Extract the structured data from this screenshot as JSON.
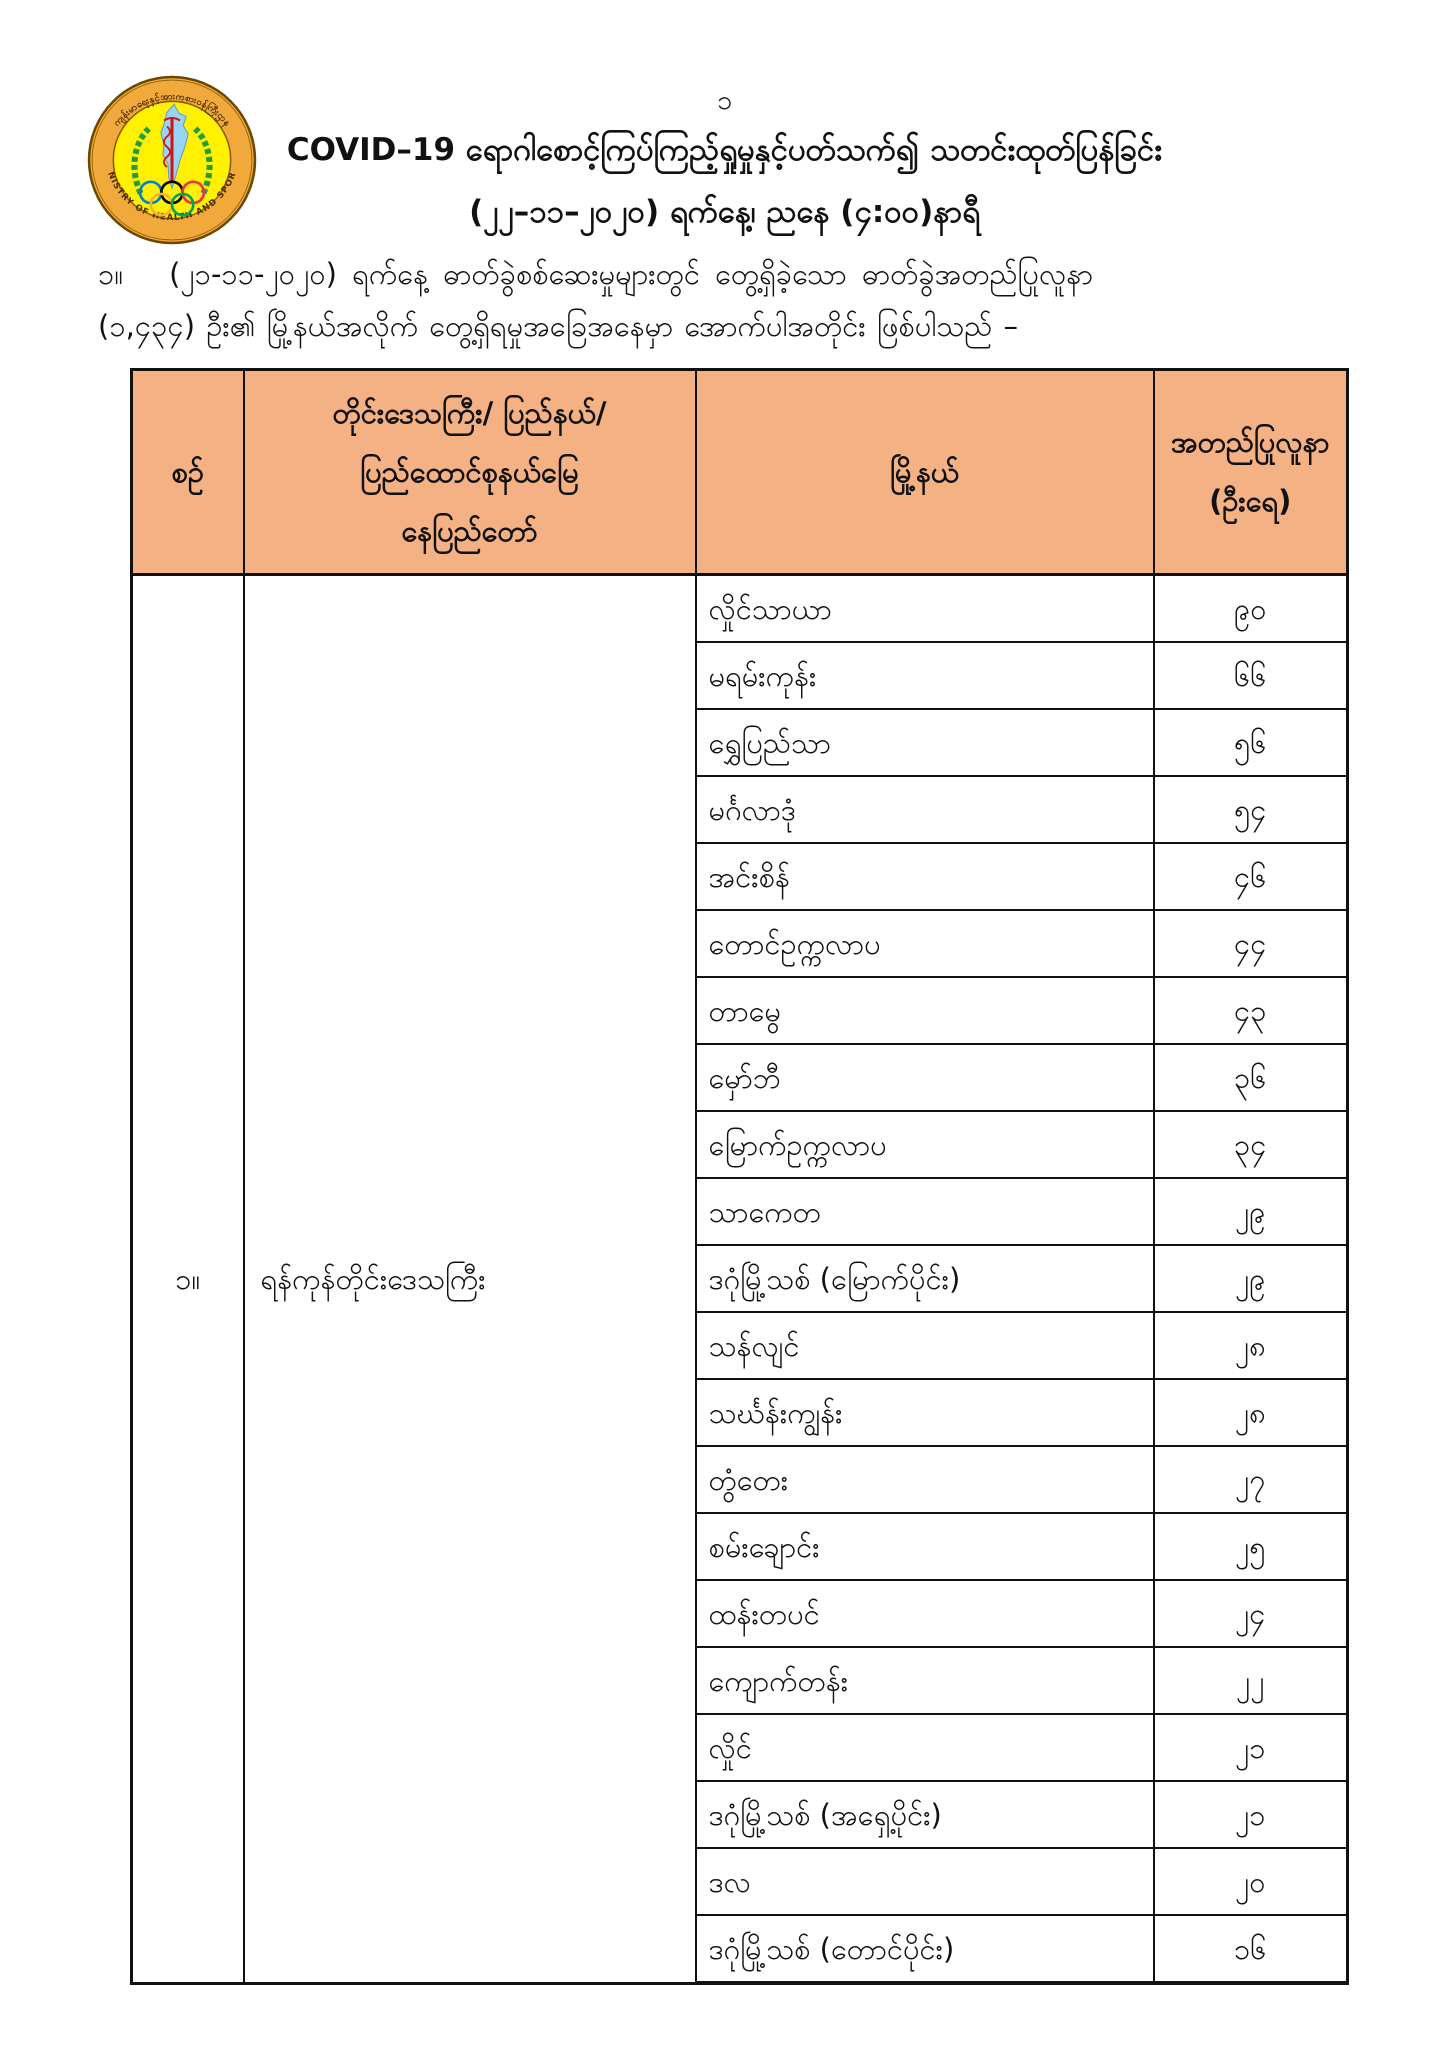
{
  "page": {
    "page_number": "၁",
    "title_line1": "COVID–19 ရောဂါစောင့်ကြပ်ကြည့်ရှုမှုနှင့်ပတ်သက်၍ သတင်းထုတ်ပြန်ခြင်း",
    "title_line2": "(၂၂–၁၁–၂၀၂၀) ရက်နေ့၊ ညနေ (၄:၀၀)နာရီ",
    "intro_item_number": "၁။",
    "intro_line1": "(၂၁-၁၁-၂၀၂၀) ရက်နေ့ ဓာတ်ခွဲစစ်ဆေးမှုများတွင် တွေ့ရှိခဲ့သော ဓာတ်ခွဲအတည်ပြုလူနာ",
    "intro_line2": "(၁,၄၃၄) ဦး၏ မြို့နယ်အလိုက် တွေ့ရှိရမှုအခြေအနေမှာ အောက်ပါအတိုင်း ဖြစ်ပါသည် –"
  },
  "logo": {
    "ring_text_top": "ကျန်းမာရေးနှင့်အားကစားဝန်ကြီးဌာန",
    "ring_text_bottom": "MINISTRY OF HEALTH AND SPORTS",
    "colors": {
      "outer_ring": "#F2A93B",
      "inner_disc": "#FFF100",
      "ring_text": "#4a2e00",
      "laurel_green": "#1E9E3E",
      "map_blue": "#9AD4F5",
      "rod_red": "#D11414"
    }
  },
  "table": {
    "header_bg": "#F4B183",
    "headers": {
      "serial": "စဉ်",
      "region": "တိုင်းဒေသကြီး/ ပြည်နယ်/\nပြည်ထောင်စုနယ်မြေ\nနေပြည်တော်",
      "township": "မြို့နယ်",
      "confirmed": "အတည်ပြုလူနာ\n(ဦးရေ)"
    },
    "serial": "၁။",
    "region": "ရန်ကုန်တိုင်းဒေသကြီး",
    "rows": [
      {
        "township": "လှိုင်သာယာ",
        "count": "၉၀"
      },
      {
        "township": "မရမ်းကုန်း",
        "count": "၆၆"
      },
      {
        "township": "ရွှေပြည်သာ",
        "count": "၅၆"
      },
      {
        "township": "မင်္ဂလာဒုံ",
        "count": "၅၄"
      },
      {
        "township": "အင်းစိန်",
        "count": "၄၆"
      },
      {
        "township": "တောင်ဥက္ကလာပ",
        "count": "၄၄"
      },
      {
        "township": "တာမွေ",
        "count": "၄၃"
      },
      {
        "township": "မှော်ဘီ",
        "count": "၃၆"
      },
      {
        "township": "မြောက်ဥက္ကလာပ",
        "count": "၃၄"
      },
      {
        "township": "သာကေတ",
        "count": "၂၉"
      },
      {
        "township": "ဒဂုံမြို့သစ် (မြောက်ပိုင်း)",
        "count": "၂၉"
      },
      {
        "township": "သန်လျင်",
        "count": "၂၈"
      },
      {
        "township": "သင်္ဃန်းကျွန်း",
        "count": "၂၈"
      },
      {
        "township": "တွံတေး",
        "count": "၂၇"
      },
      {
        "township": "စမ်းချောင်း",
        "count": "၂၅"
      },
      {
        "township": "ထန်းတပင်",
        "count": "၂၄"
      },
      {
        "township": "ကျောက်တန်း",
        "count": "၂၂"
      },
      {
        "township": "လှိုင်",
        "count": "၂၁"
      },
      {
        "township": "ဒဂုံမြို့သစ် (အရှေ့ပိုင်း)",
        "count": "၂၁"
      },
      {
        "township": "ဒလ",
        "count": "၂၀"
      },
      {
        "township": "ဒဂုံမြို့သစ် (တောင်ပိုင်း)",
        "count": "၁၆"
      }
    ]
  }
}
